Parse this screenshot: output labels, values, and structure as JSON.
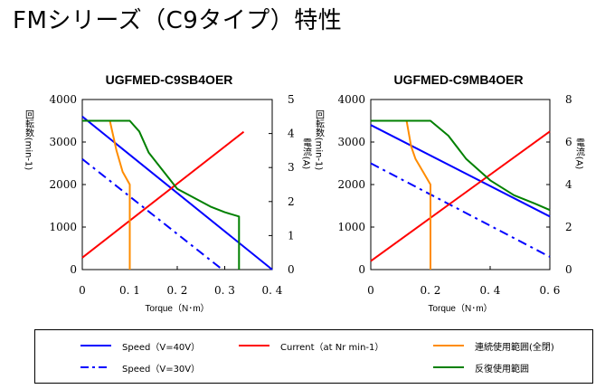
{
  "page": {
    "title": "FMシリーズ（C9タイプ）特性"
  },
  "legend": {
    "items": [
      {
        "label": "Speed（V=40V）",
        "color": "#0000ff",
        "style": "solid"
      },
      {
        "label": "Current（at Nr min-1）",
        "color": "#ff0000",
        "style": "solid"
      },
      {
        "label": "連続使用範囲(全閉)",
        "color": "#ff8c00",
        "style": "solid"
      },
      {
        "label": "Speed（V=30V）",
        "color": "#0000ff",
        "style": "dashdot"
      },
      {
        "label": "反復使用範囲",
        "color": "#008000",
        "style": "solid"
      }
    ]
  },
  "chart_data": [
    {
      "type": "line",
      "title": "UGFMED-C9SB4OER",
      "xlabel": "Torque（N･m）",
      "ylabel": "回転数(min-1)",
      "y2label": "電流(A)",
      "xlim": [
        0,
        0.4
      ],
      "ylim": [
        0,
        4000
      ],
      "y2lim": [
        0,
        5
      ],
      "xticks": [
        "0",
        "0.1",
        "0.2",
        "0.3",
        "0.4"
      ],
      "yticks": [
        "0",
        "1000",
        "2000",
        "3000",
        "4000"
      ],
      "y2ticks": [
        "0",
        "1",
        "2",
        "3",
        "4",
        "5"
      ],
      "series": [
        {
          "name": "Speed（V=40V）",
          "axis": "left",
          "color": "#0000ff",
          "style": "solid",
          "x": [
            0,
            0.4
          ],
          "y": [
            3600,
            0
          ]
        },
        {
          "name": "Speed（V=30V）",
          "axis": "left",
          "color": "#0000ff",
          "style": "dashdot",
          "x": [
            0,
            0.295
          ],
          "y": [
            2600,
            0
          ]
        },
        {
          "name": "Current（at Nr min-1）",
          "axis": "right",
          "color": "#ff0000",
          "style": "solid",
          "x": [
            0,
            0.34
          ],
          "y": [
            0.35,
            4.05
          ]
        },
        {
          "name": "連続使用範囲(全閉)",
          "axis": "left",
          "color": "#ff8c00",
          "style": "solid",
          "x": [
            0.058,
            0.072,
            0.085,
            0.1,
            0.1
          ],
          "y": [
            3500,
            2800,
            2300,
            2000,
            0
          ]
        },
        {
          "name": "反復使用範囲",
          "axis": "left",
          "color": "#008000",
          "style": "solid",
          "x": [
            0,
            0.1,
            0.12,
            0.14,
            0.2,
            0.27,
            0.3,
            0.33,
            0.33
          ],
          "y": [
            3500,
            3500,
            3250,
            2750,
            1900,
            1480,
            1350,
            1250,
            0
          ]
        }
      ]
    },
    {
      "type": "line",
      "title": "UGFMED-C9MB4OER",
      "xlabel": "Torque（N･m）",
      "ylabel": "回転数(min-1)",
      "y2label": "電流(A)",
      "xlim": [
        0,
        0.6
      ],
      "ylim": [
        0,
        4000
      ],
      "y2lim": [
        0,
        8
      ],
      "xticks": [
        "0",
        "0.2",
        "0.4",
        "0.6"
      ],
      "yticks": [
        "0",
        "1000",
        "2000",
        "3000",
        "4000"
      ],
      "y2ticks": [
        "0",
        "2",
        "4",
        "6",
        "8"
      ],
      "series": [
        {
          "name": "Speed（V=40V）",
          "axis": "left",
          "color": "#0000ff",
          "style": "solid",
          "x": [
            0,
            0.6
          ],
          "y": [
            3400,
            1250
          ]
        },
        {
          "name": "Speed（V=30V）",
          "axis": "left",
          "color": "#0000ff",
          "style": "dashdot",
          "x": [
            0,
            0.6
          ],
          "y": [
            2500,
            300
          ]
        },
        {
          "name": "Current（at Nr min-1）",
          "axis": "right",
          "color": "#ff0000",
          "style": "solid",
          "x": [
            0,
            0.6
          ],
          "y": [
            0.4,
            6.5
          ]
        },
        {
          "name": "連続使用範囲(全閉)",
          "axis": "left",
          "color": "#ff8c00",
          "style": "solid",
          "x": [
            0.12,
            0.135,
            0.15,
            0.175,
            0.2,
            0.2
          ],
          "y": [
            3500,
            2900,
            2600,
            2300,
            2000,
            0
          ]
        },
        {
          "name": "反復使用範囲",
          "axis": "left",
          "color": "#008000",
          "style": "solid",
          "x": [
            0,
            0.2,
            0.26,
            0.32,
            0.4,
            0.48,
            0.55,
            0.6
          ],
          "y": [
            3500,
            3500,
            3150,
            2600,
            2100,
            1750,
            1550,
            1400
          ]
        }
      ]
    }
  ]
}
